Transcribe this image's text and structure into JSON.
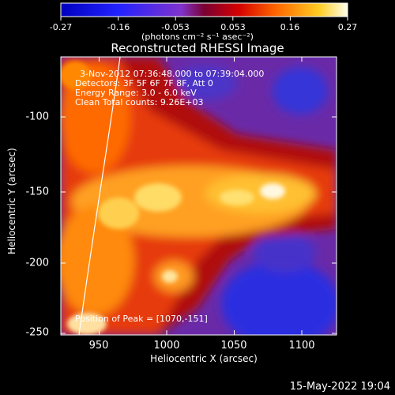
{
  "colorbar": {
    "ticks": [
      "-0.27",
      "-0.16",
      "-0.053",
      "0.053",
      "0.16",
      "0.27"
    ],
    "units": "(photons cm⁻² s⁻¹ asec⁻²)"
  },
  "plot": {
    "title": "Reconstructed RHESSI Image",
    "time_range": "3-Nov-2012 07:36:48.000 to 07:39:04.000",
    "detectors": "Detectors: 3F 5F 6F 7F 8F, Att 0",
    "energy": "Energy Range: 3.0 - 6.0 keV",
    "clean": "Clean     Total counts: 9.26E+03",
    "peak": "Position of Peak = [1070,-151]",
    "xlabel": "Heliocentric X (arcsec)",
    "ylabel": "Heliocentric Y (arcsec)",
    "xticks": [
      "950",
      "1000",
      "1050",
      "1100"
    ],
    "yticks": [
      "-100",
      "-150",
      "-200",
      "-250"
    ]
  },
  "timestamp": "15-May-2022 19:04"
}
